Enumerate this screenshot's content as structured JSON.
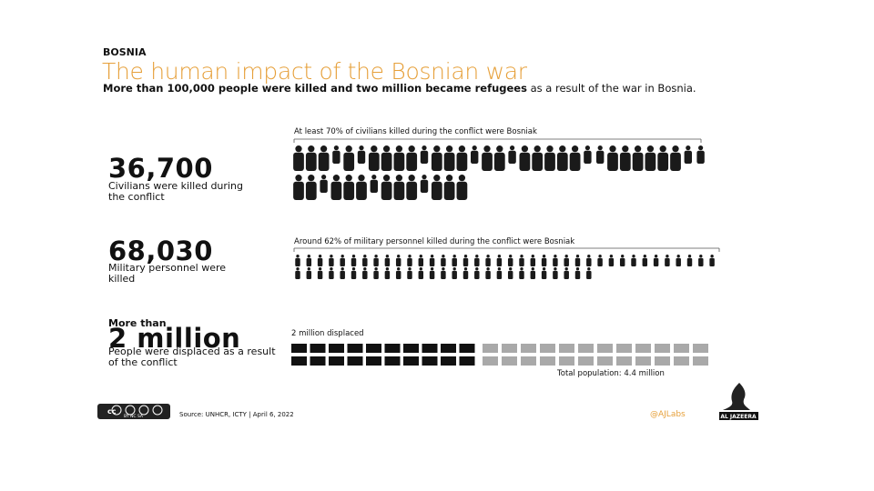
{
  "header": {
    "kicker": "BOSNIA",
    "title": "The human impact of the Bosnian war",
    "subtitle_bold": "More than 100,000 people were killed and two million became refugees",
    "subtitle_rest": " as a result of the war in Bosnia."
  },
  "civilians": {
    "number": "36,700",
    "description": "Civilians were killed during the conflict",
    "note": "At least 70% of civilians killed during the conflict were Bosniak"
  },
  "military": {
    "number": "68,030",
    "description": "Military personnel were killed",
    "note": "Around 62% of military personnel killed during the conflict were Bosniak"
  },
  "displaced": {
    "prefix": "More than",
    "number": "2 million",
    "description": "People were displaced as a result of the conflict",
    "note": "2 million displaced",
    "total": "Total population: 4.4 million"
  },
  "footer": {
    "license": "cc",
    "license_terms": "BY NC SA",
    "source": "Source: UNHCR, ICTY | April 6, 2022",
    "handle": "@AJLabs",
    "logo": "AL JAZEERA"
  }
}
